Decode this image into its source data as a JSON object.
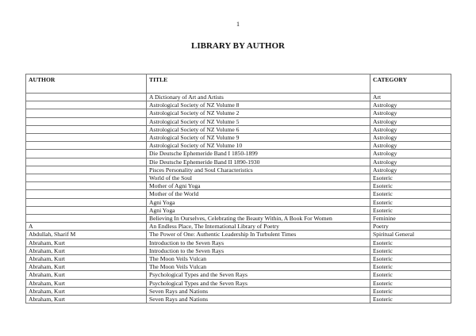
{
  "page_number": "1",
  "title": "LIBRARY BY AUTHOR",
  "columns": {
    "author": "AUTHOR",
    "title": "TITLE",
    "category": "CATEGORY"
  },
  "rows": [
    {
      "author": "",
      "title": "A Dictionary of Art and Artists",
      "category": "Art"
    },
    {
      "author": "",
      "title": "Astrological Society of NZ Volume 8",
      "category": "Astrology"
    },
    {
      "author": "",
      "title": "Astrological Society of NZ Volume 2",
      "category": "Astrology"
    },
    {
      "author": "",
      "title": "Astrological Society of NZ Volume 5",
      "category": "Astrology"
    },
    {
      "author": "",
      "title": "Astrological Society of NZ Volume 6",
      "category": "Astrology"
    },
    {
      "author": "",
      "title": "Astrological Society of NZ Volume 9",
      "category": "Astrology"
    },
    {
      "author": "",
      "title": "Astrological Society of NZ Volume 10",
      "category": "Astrology"
    },
    {
      "author": "",
      "title": "Die Deutsche Ephemeride Band I 1850-1899",
      "category": "Astrology"
    },
    {
      "author": "",
      "title": "Die Deutsche Ephemeride Band II 1890-1930",
      "category": "Astrology"
    },
    {
      "author": "",
      "title": "Pisces Personality and Soul Characteristics",
      "category": "Astrology"
    },
    {
      "author": "",
      "title": "World of the Soul",
      "category": "Esoteric"
    },
    {
      "author": "",
      "title": "Mother of Agni Yoga",
      "category": "Esoteric"
    },
    {
      "author": "",
      "title": "Mother of the World",
      "category": "Esoteric"
    },
    {
      "author": "",
      "title": "Agni Yoga",
      "category": "Esoteric"
    },
    {
      "author": "",
      "title": "Agni Yoga",
      "category": "Esoteric"
    },
    {
      "author": "",
      "title": "Believing In Ourselves, Celebrating the Beauty Within, A Book For Women",
      "category": "Feminine"
    },
    {
      "author": "A",
      "title": "An Endless Place, The International Library of Poetry",
      "category": "Poetry"
    },
    {
      "author": "Abdullah, Sharif M",
      "title": "The Power of One: Authentic Leadership In Turbulent Times",
      "category": "Spiritual General"
    },
    {
      "author": "Abraham, Kurt",
      "title": "Introduction to the Seven Rays",
      "category": "Esoteric"
    },
    {
      "author": "Abraham, Kurt",
      "title": "Introduction to the Seven Rays",
      "category": "Esoteric"
    },
    {
      "author": "Abraham, Kurt",
      "title": "The Moon Veils Vulcan",
      "category": "Esoteric"
    },
    {
      "author": "Abraham, Kurt",
      "title": "The Moon Veils Vulcan",
      "category": "Esoteric"
    },
    {
      "author": "Abraham, Kurt",
      "title": "Psychological Types and the Seven Rays",
      "category": "Esoteric"
    },
    {
      "author": "Abraham, Kurt",
      "title": "Psychological Types and the Seven Rays",
      "category": "Esoteric"
    },
    {
      "author": "Abraham, Kurt",
      "title": "Seven Rays and Nations",
      "category": "Esoteric"
    },
    {
      "author": "Abraham, Kurt",
      "title": "Seven Rays and Nations",
      "category": "Esoteric"
    }
  ]
}
